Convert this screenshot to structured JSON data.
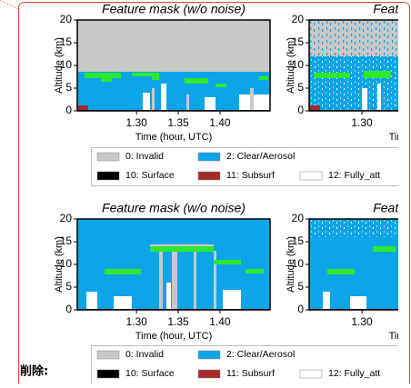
{
  "panels": [
    {
      "title": "Feature mask (w/o noise)",
      "ylabel": "Altitude (km)",
      "xlabel": "Time (hour, UTC)",
      "ylim": [
        0,
        20
      ],
      "yticks": [
        0,
        5,
        10,
        15,
        20
      ],
      "xlim": [
        1.229,
        1.46
      ],
      "xticks": [
        {
          "value": 1.3,
          "label": "1.30"
        },
        {
          "value": 1.35,
          "label": "1.35"
        },
        {
          "value": 1.4,
          "label": "1.40"
        }
      ]
    },
    {
      "title": "Feature ma",
      "ylabel": "Altitude (km)",
      "xlabel": "Time (h",
      "ylim": [
        0,
        20
      ],
      "yticks": [
        0,
        5,
        10,
        15,
        20
      ],
      "xlim": [
        1.237,
        1.467
      ],
      "xticks": [
        {
          "value": 1.3,
          "label": "1.30"
        }
      ]
    },
    {
      "title": "Feature mask (w/o noise)",
      "ylabel": "Altitude (km)",
      "xlabel": "Time (hour, UTC)",
      "ylim": [
        0,
        20
      ],
      "yticks": [
        0,
        5,
        10,
        15,
        20
      ],
      "xlim": [
        1.229,
        1.46
      ],
      "xticks": [
        {
          "value": 1.3,
          "label": "1.30"
        },
        {
          "value": 1.35,
          "label": "1.35"
        },
        {
          "value": 1.4,
          "label": "1.40"
        }
      ]
    },
    {
      "title": "Feature ma",
      "ylabel": "Altitude (km)",
      "xlabel": "Time (h",
      "ylim": [
        0,
        20
      ],
      "yticks": [
        0,
        5,
        10,
        15,
        20
      ],
      "xlim": [
        1.237,
        1.467
      ],
      "xticks": [
        {
          "value": 1.3,
          "label": "1.30"
        }
      ]
    }
  ],
  "legends": [
    {
      "entries": [
        {
          "label": "0: Invalid",
          "color": "#c8c8c8"
        },
        {
          "label": "2: Clear/Aerosol",
          "color": "#0ca6e8"
        },
        {
          "label": "10: Surface",
          "color": "#000000"
        },
        {
          "label": "11: Subsurf",
          "color": "#a52a2a"
        },
        {
          "label": "12: Fully_att",
          "color": "#ffffff"
        }
      ]
    },
    {
      "entries": [
        {
          "label": "0: Invalid",
          "color": "#c8c8c8"
        },
        {
          "label": "2: Clear/Aerosol",
          "color": "#0ca6e8"
        },
        {
          "label": "10: Surface",
          "color": "#000000"
        },
        {
          "label": "11: Subsurf",
          "color": "#a52a2a"
        },
        {
          "label": "12: Fully_att",
          "color": "#ffffff"
        }
      ]
    }
  ],
  "deletion_label": "削除:"
}
